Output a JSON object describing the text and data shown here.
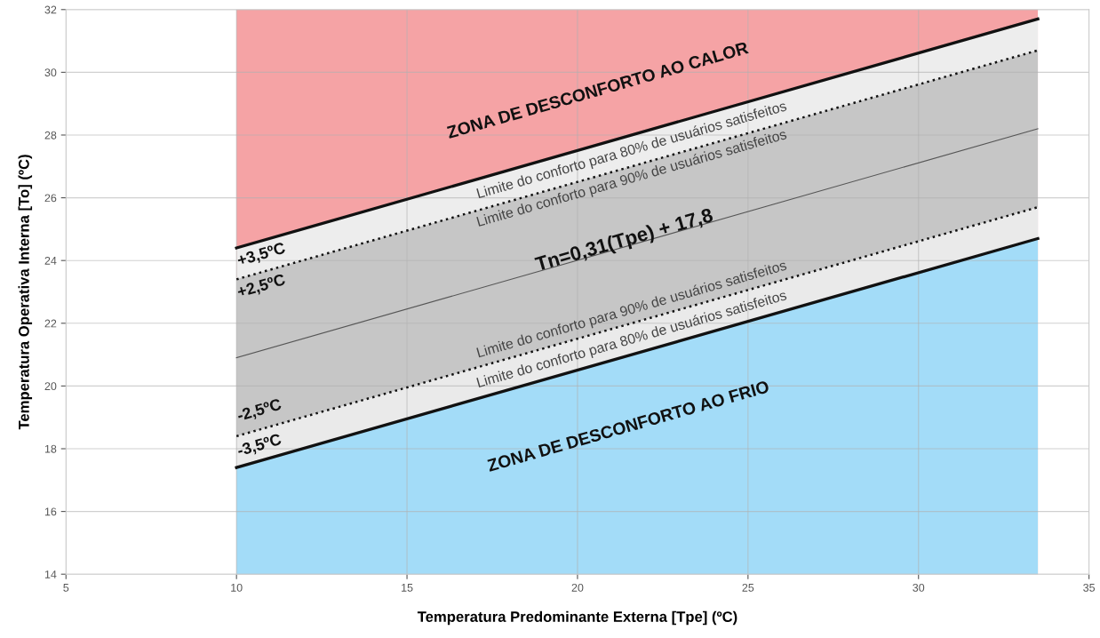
{
  "chart_data": {
    "type": "area",
    "xlabel": "Temperatura Predominante Externa [Tpe] (ºC)",
    "ylabel": "Temperatura Operativa Interna [To] (ºC)",
    "xlim": [
      5,
      35
    ],
    "xticks": [
      5,
      10,
      15,
      20,
      25,
      30,
      35
    ],
    "ylim": [
      14,
      32
    ],
    "yticks": [
      14,
      16,
      18,
      20,
      22,
      24,
      26,
      28,
      30,
      32
    ],
    "grid": true,
    "x": [
      10,
      33.5
    ],
    "series": [
      {
        "color": "#f5a3a5",
        "values": [
          32,
          32
        ]
      },
      {
        "color": "#ededed",
        "values": [
          24.4,
          31.7
        ],
        "line_style": "solid"
      },
      {
        "color": "#c6c6c6",
        "values": [
          23.4,
          30.7
        ],
        "line_style": "dotted"
      },
      {
        "color": "#eaeaea",
        "values": [
          18.4,
          25.7
        ],
        "line_style": "dotted"
      },
      {
        "color": "#a3dcf8",
        "values": [
          17.4,
          24.7
        ],
        "line_style": "solid"
      },
      {
        "type": "line",
        "color": "#555555",
        "values": [
          20.9,
          28.2
        ],
        "line_style": "solid"
      }
    ],
    "annotations": [
      "ZONA DE DESCONFORTO AO CALOR",
      "ZONA DE DESCONFORTO AO FRIO",
      "+3,5ºC",
      "+2,5ºC",
      "-2,5ºC",
      "-3,5ºC",
      "Tn=0,31(Tpe) + 17,8",
      "Limite do conforto para 80% de usuários satisfeitos",
      "Limite do conforto para 90% de usuários satisfeitos",
      "Limite do conforto para 90% de usuários satisfeitos",
      "Limite do conforto para 80% de usuários satisfeitos"
    ]
  }
}
